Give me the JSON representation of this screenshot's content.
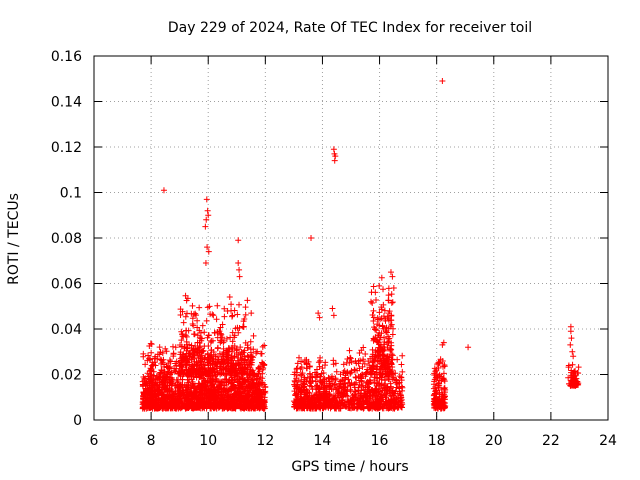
{
  "chart_data": {
    "type": "scatter",
    "title": "Day 229 of 2024, Rate Of TEC Index for receiver toil",
    "xlabel": "GPS time / hours",
    "ylabel": "ROTI / TECUs",
    "xlim": [
      6,
      24
    ],
    "ylim": [
      0,
      0.16
    ],
    "x_ticks": [
      "6",
      "8",
      "10",
      "12",
      "14",
      "16",
      "18",
      "20",
      "22",
      "24"
    ],
    "y_ticks": [
      "0",
      "0.02",
      "0.04",
      "0.06",
      "0.08",
      "0.1",
      "0.12",
      "0.14",
      "0.16"
    ],
    "grid": true,
    "marker": "+",
    "color": "#ff0000",
    "series": [
      {
        "name": "ROTI",
        "clusters": [
          {
            "x_start": 7.7,
            "x_end": 12.0,
            "y_min": 0.005,
            "y_max": 0.035,
            "count": 1800
          },
          {
            "x_start": 9.0,
            "x_end": 11.6,
            "y_min": 0.02,
            "y_max": 0.06,
            "count": 400
          },
          {
            "x_start": 13.0,
            "x_end": 14.3,
            "y_min": 0.005,
            "y_max": 0.03,
            "count": 400
          },
          {
            "x_start": 14.3,
            "x_end": 16.8,
            "y_min": 0.005,
            "y_max": 0.035,
            "count": 600
          },
          {
            "x_start": 15.7,
            "x_end": 16.5,
            "y_min": 0.02,
            "y_max": 0.065,
            "count": 200
          },
          {
            "x_start": 17.9,
            "x_end": 18.3,
            "y_min": 0.005,
            "y_max": 0.03,
            "count": 150
          },
          {
            "x_start": 22.6,
            "x_end": 23.0,
            "y_min": 0.015,
            "y_max": 0.025,
            "count": 60
          }
        ],
        "points": [
          {
            "x": 8.45,
            "y": 0.101
          },
          {
            "x": 9.95,
            "y": 0.097
          },
          {
            "x": 9.98,
            "y": 0.092
          },
          {
            "x": 9.93,
            "y": 0.088
          },
          {
            "x": 9.9,
            "y": 0.085
          },
          {
            "x": 10.0,
            "y": 0.09
          },
          {
            "x": 9.96,
            "y": 0.076
          },
          {
            "x": 10.02,
            "y": 0.074
          },
          {
            "x": 9.92,
            "y": 0.069
          },
          {
            "x": 11.05,
            "y": 0.079
          },
          {
            "x": 11.05,
            "y": 0.069
          },
          {
            "x": 11.08,
            "y": 0.066
          },
          {
            "x": 11.1,
            "y": 0.063
          },
          {
            "x": 13.6,
            "y": 0.08
          },
          {
            "x": 14.4,
            "y": 0.119
          },
          {
            "x": 14.42,
            "y": 0.117
          },
          {
            "x": 14.45,
            "y": 0.116
          },
          {
            "x": 14.43,
            "y": 0.114
          },
          {
            "x": 13.85,
            "y": 0.047
          },
          {
            "x": 13.9,
            "y": 0.045
          },
          {
            "x": 14.35,
            "y": 0.049
          },
          {
            "x": 14.4,
            "y": 0.046
          },
          {
            "x": 16.4,
            "y": 0.065
          },
          {
            "x": 16.45,
            "y": 0.063
          },
          {
            "x": 16.5,
            "y": 0.058
          },
          {
            "x": 18.2,
            "y": 0.149
          },
          {
            "x": 18.25,
            "y": 0.034
          },
          {
            "x": 18.2,
            "y": 0.033
          },
          {
            "x": 19.1,
            "y": 0.032
          },
          {
            "x": 22.7,
            "y": 0.041
          },
          {
            "x": 22.7,
            "y": 0.039
          },
          {
            "x": 22.72,
            "y": 0.036
          },
          {
            "x": 22.68,
            "y": 0.033
          },
          {
            "x": 22.75,
            "y": 0.03
          },
          {
            "x": 22.78,
            "y": 0.028
          },
          {
            "x": 22.85,
            "y": 0.017
          },
          {
            "x": 22.9,
            "y": 0.016
          }
        ]
      }
    ]
  }
}
